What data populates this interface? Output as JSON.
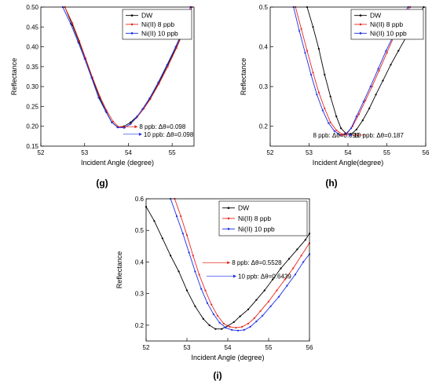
{
  "figure_labels": [
    "(g)",
    "(h)",
    "(i)"
  ],
  "chart_data": [
    {
      "type": "line",
      "panel_label": "(g)",
      "xlabel": "Incident Angle (degree)",
      "ylabel": "Reflectance",
      "xlim": [
        52,
        55.5
      ],
      "ylim": [
        0.15,
        0.5
      ],
      "xticks": [
        "52",
        "53",
        "54",
        "55"
      ],
      "yticks": [
        "0.15",
        "0.20",
        "0.25",
        "0.30",
        "0.35",
        "0.40",
        "0.45",
        "0.50"
      ],
      "legend_position": "top-right",
      "series": [
        {
          "name": "DW",
          "color": "#000000",
          "x": [
            52.55,
            52.72,
            52.88,
            53.02,
            53.18,
            53.35,
            53.5,
            53.62,
            53.75,
            53.9,
            54.05,
            54.2,
            54.35,
            54.5,
            54.7,
            54.9,
            55.1,
            55.3,
            55.45
          ],
          "y": [
            0.5,
            0.455,
            0.41,
            0.37,
            0.32,
            0.27,
            0.235,
            0.21,
            0.198,
            0.2,
            0.21,
            0.225,
            0.245,
            0.27,
            0.31,
            0.355,
            0.4,
            0.45,
            0.5
          ]
        },
        {
          "name": "Ni(II) 8 ppb",
          "color": "#e8281e",
          "x": [
            52.55,
            52.72,
            52.88,
            53.02,
            53.18,
            53.35,
            53.5,
            53.65,
            53.78,
            53.92,
            54.06,
            54.2,
            54.35,
            54.5,
            54.7,
            54.9,
            55.1,
            55.3,
            55.45
          ],
          "y": [
            0.5,
            0.46,
            0.415,
            0.372,
            0.323,
            0.275,
            0.24,
            0.212,
            0.198,
            0.197,
            0.207,
            0.223,
            0.244,
            0.268,
            0.307,
            0.35,
            0.397,
            0.448,
            0.5
          ]
        },
        {
          "name": "Ni(II) 10 ppb",
          "color": "#1a2ee8",
          "x": [
            52.5,
            52.68,
            52.85,
            53.0,
            53.16,
            53.32,
            53.48,
            53.62,
            53.76,
            53.9,
            54.04,
            54.18,
            54.32,
            54.48,
            54.68,
            54.88,
            55.08,
            55.28,
            55.42
          ],
          "y": [
            0.5,
            0.458,
            0.412,
            0.37,
            0.322,
            0.272,
            0.238,
            0.21,
            0.197,
            0.196,
            0.205,
            0.222,
            0.243,
            0.27,
            0.31,
            0.354,
            0.4,
            0.451,
            0.5
          ]
        }
      ],
      "annotations": [
        {
          "text": "8 ppb: Δθ=0.098",
          "x": 54.25,
          "y": 0.199,
          "arrow_to": 53.78
        },
        {
          "text": "10 ppb: Δθ=0.098",
          "x": 54.35,
          "y": 0.18,
          "arrow_to": 53.88
        }
      ]
    },
    {
      "type": "line",
      "panel_label": "(h)",
      "xlabel": "Incident Angle(degree)",
      "ylabel": "Reflectance",
      "xlim": [
        52,
        56
      ],
      "ylim": [
        0.15,
        0.5
      ],
      "xticks": [
        "52",
        "53",
        "54",
        "55",
        "56"
      ],
      "yticks": [
        "0.2",
        "0.3",
        "0.4",
        "0.5"
      ],
      "legend_position": "top-right",
      "series": [
        {
          "name": "DW",
          "color": "#000000",
          "x": [
            52.95,
            53.1,
            53.25,
            53.4,
            53.55,
            53.7,
            53.82,
            53.95,
            54.08,
            54.22,
            54.38,
            54.55,
            54.72,
            54.9,
            55.1,
            55.3,
            55.5,
            55.75,
            55.95
          ],
          "y": [
            0.5,
            0.45,
            0.395,
            0.33,
            0.275,
            0.225,
            0.195,
            0.182,
            0.18,
            0.192,
            0.215,
            0.245,
            0.28,
            0.315,
            0.355,
            0.39,
            0.425,
            0.47,
            0.5
          ]
        },
        {
          "name": "Ni(II) 8 ppb",
          "color": "#e8281e",
          "x": [
            52.65,
            52.8,
            52.95,
            53.1,
            53.25,
            53.4,
            53.55,
            53.7,
            53.85,
            53.98,
            54.12,
            54.28,
            54.45,
            54.62,
            54.8,
            55.0,
            55.2,
            55.4,
            55.6
          ],
          "y": [
            0.5,
            0.445,
            0.39,
            0.335,
            0.285,
            0.245,
            0.21,
            0.19,
            0.18,
            0.182,
            0.2,
            0.23,
            0.265,
            0.3,
            0.34,
            0.385,
            0.43,
            0.475,
            0.5
          ]
        },
        {
          "name": "Ni(II) 10 ppb",
          "color": "#1a2ee8",
          "x": [
            52.6,
            52.75,
            52.9,
            53.05,
            53.2,
            53.35,
            53.5,
            53.65,
            53.8,
            53.94,
            54.08,
            54.22,
            54.4,
            54.58,
            54.78,
            54.98,
            55.18,
            55.38,
            55.55
          ],
          "y": [
            0.5,
            0.44,
            0.385,
            0.33,
            0.28,
            0.24,
            0.208,
            0.188,
            0.178,
            0.18,
            0.195,
            0.225,
            0.262,
            0.3,
            0.345,
            0.39,
            0.43,
            0.475,
            0.5
          ]
        }
      ],
      "annotations": [
        {
          "text": "8 ppb: Δθ=0.099",
          "x": 53.1,
          "y": 0.178,
          "arrow_to": 53.9
        },
        {
          "text": "10 ppb: Δθ=0.187",
          "x": 54.15,
          "y": 0.178,
          "arrow_to": 54.05
        }
      ]
    },
    {
      "type": "line",
      "panel_label": "(i)",
      "xlabel": "Incident Angle (degree)",
      "ylabel": "Reflectance",
      "xlim": [
        52,
        56
      ],
      "ylim": [
        0.15,
        0.6
      ],
      "xticks": [
        "52",
        "53",
        "54",
        "55",
        "56"
      ],
      "yticks": [
        "0.2",
        "0.3",
        "0.4",
        "0.5",
        "0.6"
      ],
      "legend_position": "top-right",
      "series": [
        {
          "name": "DW",
          "color": "#000000",
          "x": [
            52.0,
            52.2,
            52.4,
            52.6,
            52.8,
            53.0,
            53.2,
            53.4,
            53.55,
            53.7,
            53.85,
            54.0,
            54.15,
            54.3,
            54.5,
            54.7,
            54.9,
            55.1,
            55.3,
            55.5,
            55.7,
            55.9,
            56.0
          ],
          "y": [
            0.575,
            0.53,
            0.475,
            0.42,
            0.37,
            0.31,
            0.26,
            0.22,
            0.2,
            0.188,
            0.188,
            0.198,
            0.21,
            0.228,
            0.25,
            0.28,
            0.31,
            0.345,
            0.38,
            0.41,
            0.44,
            0.47,
            0.49
          ]
        },
        {
          "name": "Ni(II) 8 ppb",
          "color": "#e8281e",
          "x": [
            52.7,
            52.85,
            53.0,
            53.15,
            53.3,
            53.45,
            53.6,
            53.75,
            53.9,
            54.05,
            54.2,
            54.35,
            54.5,
            54.65,
            54.8,
            55.0,
            55.2,
            55.4,
            55.6,
            55.8,
            56.0
          ],
          "y": [
            0.6,
            0.545,
            0.485,
            0.42,
            0.36,
            0.31,
            0.265,
            0.23,
            0.205,
            0.195,
            0.192,
            0.195,
            0.205,
            0.222,
            0.245,
            0.275,
            0.31,
            0.345,
            0.38,
            0.42,
            0.46
          ]
        },
        {
          "name": "Ni(II) 10 ppb",
          "color": "#1a2ee8",
          "x": [
            52.6,
            52.75,
            52.9,
            53.05,
            53.2,
            53.35,
            53.5,
            53.65,
            53.8,
            53.95,
            54.1,
            54.25,
            54.4,
            54.55,
            54.7,
            54.85,
            55.05,
            55.25,
            55.45,
            55.65,
            55.85,
            56.0
          ],
          "y": [
            0.6,
            0.545,
            0.49,
            0.43,
            0.37,
            0.315,
            0.27,
            0.235,
            0.208,
            0.192,
            0.185,
            0.183,
            0.185,
            0.195,
            0.212,
            0.23,
            0.26,
            0.29,
            0.325,
            0.36,
            0.4,
            0.425
          ]
        }
      ],
      "annotations": [
        {
          "text": "8 ppb: Δθ=0.5528",
          "x": 54.1,
          "y": 0.398,
          "arrow_to": 53.38
        },
        {
          "text": "10 ppb: Δθ=0.6439",
          "x": 54.25,
          "y": 0.355,
          "arrow_to": 53.48
        }
      ]
    }
  ]
}
